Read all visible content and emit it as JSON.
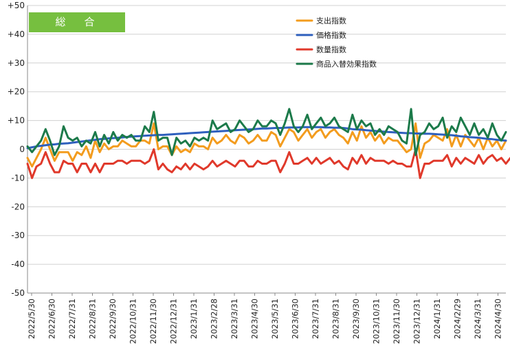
{
  "chart_data": {
    "type": "line",
    "badge": "総　合",
    "ylim": [
      -50,
      50
    ],
    "yticks": [
      {
        "value": 50,
        "label": "+50"
      },
      {
        "value": 40,
        "label": "+40"
      },
      {
        "value": 30,
        "label": "+30"
      },
      {
        "value": 20,
        "label": "+20"
      },
      {
        "value": 10,
        "label": "+10"
      },
      {
        "value": 0,
        "label": "0"
      },
      {
        "value": -10,
        "label": "-10"
      },
      {
        "value": -20,
        "label": "-20"
      },
      {
        "value": -30,
        "label": "-30"
      },
      {
        "value": -40,
        "label": "-40"
      },
      {
        "value": -50,
        "label": "-50"
      }
    ],
    "xticks": [
      "2022/5/30",
      "2022/6/30",
      "2022/7/31",
      "2022/8/31",
      "2022/9/30",
      "2022/10/31",
      "2022/11/30",
      "2022/12/31",
      "2023/1/31",
      "2023/2/28",
      "2023/3/31",
      "2023/4/30",
      "2023/5/31",
      "2023/6/30",
      "2023/7/31",
      "2023/8/31",
      "2023/9/30",
      "2023/10/31",
      "2023/11/30",
      "2023/12/31",
      "2024/1/31",
      "2024/2/29",
      "2024/3/31",
      "2024/4/30"
    ],
    "legend_position": "top-right",
    "series": [
      {
        "name": "支出指数",
        "color": "#f39c1e",
        "values": [
          -3,
          -6,
          -3,
          0,
          4,
          0,
          -4,
          -1,
          -1,
          -1,
          -4,
          -1,
          -2,
          1,
          -3,
          3,
          -1,
          2,
          0,
          1,
          1,
          3,
          2,
          1,
          1,
          3,
          3,
          2,
          9,
          0,
          1,
          1,
          -2,
          1,
          -1,
          0,
          -1,
          2,
          1,
          1,
          0,
          4,
          2,
          3,
          5,
          3,
          2,
          5,
          4,
          2,
          3,
          5,
          3,
          3,
          6,
          5,
          1,
          4,
          7,
          6,
          3,
          5,
          7,
          4,
          6,
          7,
          4,
          6,
          7,
          5,
          4,
          2,
          6,
          3,
          8,
          4,
          6,
          3,
          5,
          2,
          4,
          3,
          3,
          1,
          -1,
          0,
          9,
          -3,
          2,
          3,
          5,
          4,
          3,
          7,
          1,
          5,
          1,
          5,
          3,
          1,
          4,
          0,
          4,
          1,
          3,
          0,
          3
        ]
      },
      {
        "name": "価格指数",
        "color": "#2e5fbd",
        "values": [
          0.4,
          0.7,
          1.0,
          1.2,
          1.4,
          1.6,
          1.7,
          1.9,
          2.0,
          2.1,
          2.3,
          2.5,
          2.7,
          2.9,
          3.1,
          3.3,
          3.5,
          3.6,
          3.8,
          3.9,
          4.0,
          4.1,
          4.3,
          4.4,
          4.5,
          4.6,
          4.7,
          4.8,
          4.9,
          5.0,
          5.0,
          5.1,
          5.2,
          5.3,
          5.4,
          5.5,
          5.6,
          5.7,
          5.8,
          5.9,
          6.0,
          6.1,
          6.2,
          6.3,
          6.4,
          6.5,
          6.6,
          6.7,
          6.8,
          6.9,
          7.0,
          7.1,
          7.2,
          7.2,
          7.3,
          7.4,
          7.4,
          7.5,
          7.6,
          7.6,
          7.6,
          7.7,
          7.7,
          7.7,
          7.7,
          7.7,
          7.6,
          7.6,
          7.5,
          7.5,
          7.4,
          7.2,
          7.0,
          6.9,
          6.8,
          6.6,
          6.5,
          6.4,
          6.2,
          6.1,
          6.0,
          5.9,
          5.8,
          5.7,
          5.6,
          5.6,
          5.5,
          5.5,
          5.4,
          5.4,
          5.3,
          5.2,
          5.1,
          5.0,
          4.9,
          4.7,
          4.5,
          4.4,
          4.2,
          4.1,
          4.0,
          3.8,
          3.6,
          3.5,
          3.3,
          3.1,
          3.0
        ]
      },
      {
        "name": "数量指数",
        "color": "#e0392b",
        "values": [
          -5,
          -10,
          -6,
          -5,
          -1,
          -5,
          -8,
          -8,
          -4,
          -5,
          -5,
          -8,
          -5,
          -5,
          -8,
          -5,
          -8,
          -5,
          -5,
          -5,
          -4,
          -4,
          -5,
          -4,
          -4,
          -4,
          -5,
          -4,
          0,
          -7,
          -5,
          -7,
          -8,
          -6,
          -7,
          -5,
          -7,
          -5,
          -6,
          -7,
          -6,
          -4,
          -6,
          -5,
          -4,
          -5,
          -6,
          -4,
          -4,
          -6,
          -6,
          -4,
          -5,
          -5,
          -4,
          -4,
          -8,
          -5,
          -1,
          -5,
          -5,
          -4,
          -3,
          -5,
          -3,
          -5,
          -4,
          -3,
          -5,
          -4,
          -6,
          -7,
          -3,
          -5,
          -2,
          -5,
          -3,
          -4,
          -4,
          -4,
          -5,
          -4,
          -5,
          -5,
          -6,
          -6,
          0,
          -10,
          -5,
          -5,
          -4,
          -4,
          -4,
          -2,
          -6,
          -3,
          -5,
          -3,
          -4,
          -5,
          -2,
          -5,
          -3,
          -2,
          -4,
          -3,
          -5,
          -3
        ]
      },
      {
        "name": "商品入替効果指数",
        "color": "#1c7a4a",
        "values": [
          1,
          -1,
          1,
          3,
          7,
          3,
          -2,
          1,
          8,
          4,
          3,
          4,
          1,
          3,
          2,
          6,
          1,
          5,
          2,
          6,
          3,
          5,
          4,
          5,
          3,
          3,
          8,
          6,
          13,
          3,
          4,
          4,
          -2,
          4,
          2,
          3,
          1,
          4,
          3,
          4,
          3,
          10,
          7,
          8,
          9,
          6,
          7,
          10,
          8,
          6,
          7,
          10,
          8,
          8,
          10,
          9,
          5,
          9,
          14,
          8,
          6,
          8,
          12,
          7,
          9,
          11,
          8,
          9,
          11,
          8,
          7,
          6,
          12,
          7,
          10,
          8,
          9,
          5,
          7,
          5,
          8,
          7,
          6,
          3,
          2,
          14,
          -2,
          5,
          6,
          9,
          7,
          8,
          11,
          4,
          8,
          6,
          11,
          8,
          5,
          9,
          5,
          7,
          4,
          9,
          5,
          3,
          6
        ]
      }
    ]
  }
}
